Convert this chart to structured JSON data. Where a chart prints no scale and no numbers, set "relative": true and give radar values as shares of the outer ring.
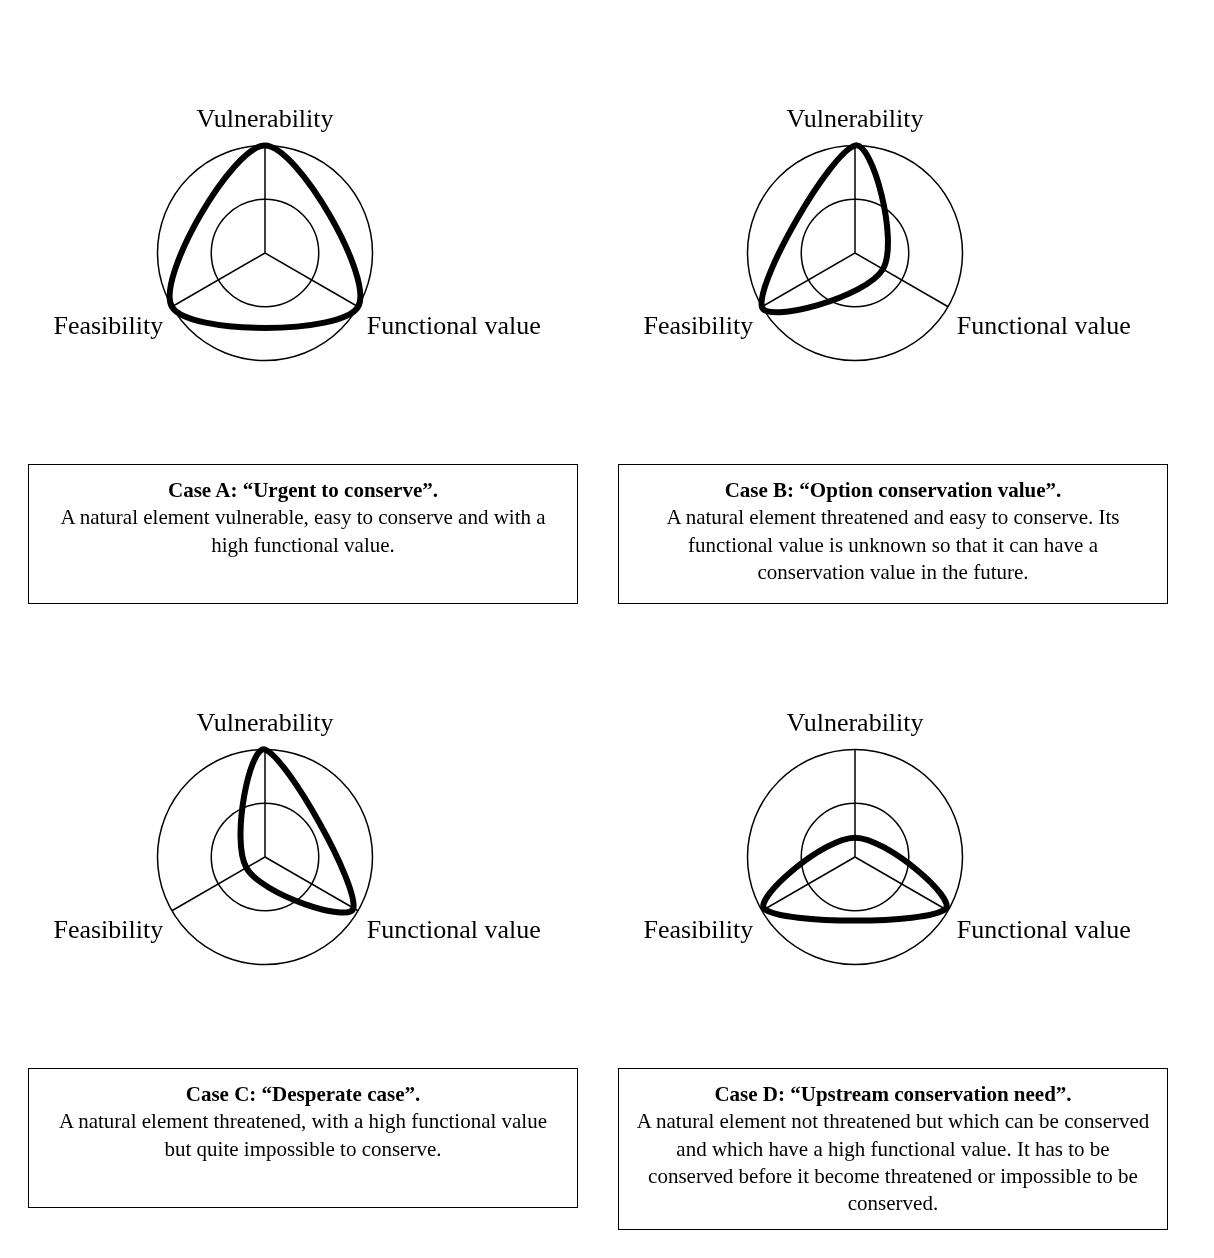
{
  "chart_data": [
    {
      "type": "radar",
      "title": "Case A: “Urgent to conserve”.",
      "subtitle": "A natural element vulnerable, easy to conserve and with a high functional value.",
      "categories": [
        "Vulnerability",
        "Functional value",
        "Feasibility"
      ],
      "relative": true,
      "grid": true,
      "legend": false,
      "marker": "none",
      "series": [
        {
          "color": "#000000",
          "values": [
            1,
            1,
            1
          ]
        }
      ]
    },
    {
      "type": "radar",
      "title": "Case B: “Option conservation value”.",
      "subtitle": "A natural element threatened and easy to conserve. Its functional value is unknown so that it can have a conservation value in the future.",
      "categories": [
        "Vulnerability",
        "Functional value",
        "Feasibility"
      ],
      "relative": true,
      "grid": true,
      "legend": false,
      "marker": "none",
      "series": [
        {
          "color": "#000000",
          "values": [
            1,
            0.3,
            1
          ]
        }
      ]
    },
    {
      "type": "radar",
      "title": "Case C: “Desperate case”.",
      "subtitle": "A natural element threatened, with a high functional value but quite impossible to conserve.",
      "categories": [
        "Vulnerability",
        "Functional value",
        "Feasibility"
      ],
      "relative": true,
      "grid": true,
      "legend": false,
      "marker": "none",
      "series": [
        {
          "color": "#000000",
          "values": [
            1,
            0.95,
            0.2
          ]
        }
      ]
    },
    {
      "type": "radar",
      "title": "Case D: “Upstream conservation need”.",
      "subtitle": "A natural element not threatened but which can be conserved and which have a high functional value. It has to be conserved before it become threatened or impossible to be conserved.",
      "categories": [
        "Vulnerability",
        "Functional value",
        "Feasibility"
      ],
      "relative": true,
      "grid": true,
      "legend": false,
      "marker": "none",
      "series": [
        {
          "color": "#000000",
          "values": [
            0.18,
            0.97,
            0.97
          ]
        }
      ]
    }
  ]
}
